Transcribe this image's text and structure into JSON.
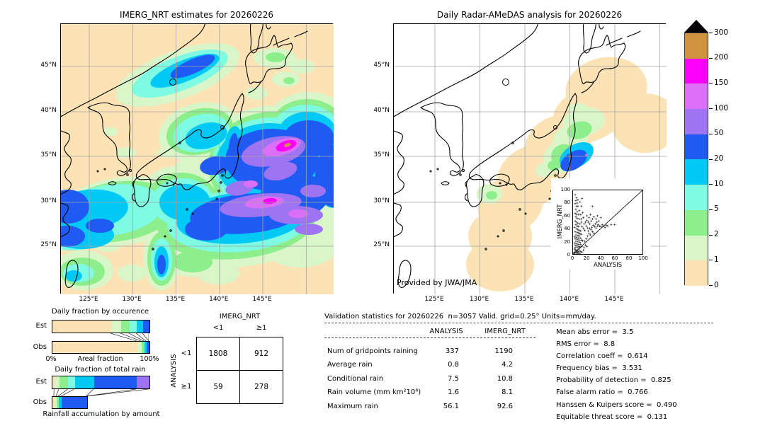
{
  "chart_data": {
    "type": "multi-panel-precipitation-validation",
    "left_map": {
      "type": "map-contour",
      "title": "IMERG_NRT estimates for 20260226",
      "x_ticks": [
        "125°E",
        "130°E",
        "135°E",
        "140°E",
        "145°E"
      ],
      "y_ticks": [
        "45°N",
        "40°N",
        "35°N",
        "30°N",
        "25°N"
      ]
    },
    "right_map": {
      "type": "map-contour",
      "title": "Daily Radar-AMeDAS analysis for 20260226",
      "x_ticks": [
        "125°E",
        "130°E",
        "135°E",
        "140°E",
        "145°E"
      ],
      "y_ticks": [
        "45°N",
        "40°N",
        "35°N",
        "30°N",
        "25°N"
      ],
      "credit": "Provided by JWA/JMA"
    },
    "colorbar": {
      "tick_labels": [
        "300",
        "200",
        "150",
        "100",
        "50",
        "20",
        "10",
        "5",
        "2",
        "1",
        "0"
      ],
      "colors_top_to_bottom": [
        "#cf923e",
        "#fb00fb",
        "#dc6ff7",
        "#9e74f3",
        "#1f5bf2",
        "#00c9f6",
        "#7ffbe3",
        "#8cef8c",
        "#d9f6c9",
        "#fbe3b6"
      ]
    },
    "occurrence": {
      "type": "bar",
      "title": "Daily fraction by occurence",
      "row_labels": [
        "Est",
        "Obs"
      ],
      "x_left_label": "0%",
      "x_axis_label": "Areal fraction",
      "x_right_label": "100%",
      "est_segments": [
        {
          "color": "#fbe3b6",
          "pct": 60.6
        },
        {
          "color": "#d9f6c9",
          "pct": 10.2
        },
        {
          "color": "#8cef8c",
          "pct": 8.8
        },
        {
          "color": "#7ffbe3",
          "pct": 7.3
        },
        {
          "color": "#00c9f6",
          "pct": 6.6
        },
        {
          "color": "#1f5bf2",
          "pct": 6.5
        }
      ],
      "obs_segments": [
        {
          "color": "#fbe3b6",
          "pct": 87.6
        },
        {
          "color": "#d9f6c9",
          "pct": 4.4
        },
        {
          "color": "#8cef8c",
          "pct": 2.9
        },
        {
          "color": "#00c9f6",
          "pct": 2.2
        },
        {
          "color": "#1f5bf2",
          "pct": 2.9
        }
      ]
    },
    "total_rain": {
      "type": "bar",
      "title": "Daily fraction of total rain",
      "footer": "Rainfall accumulation by amount",
      "row_labels": [
        "Est",
        "Obs"
      ],
      "est_segments": [
        {
          "color": "#fbe3b6",
          "pct": 2.3
        },
        {
          "color": "#d9f6c9",
          "pct": 5.0
        },
        {
          "color": "#8cef8c",
          "pct": 9.1
        },
        {
          "color": "#7ffbe3",
          "pct": 6.8
        },
        {
          "color": "#00c9f6",
          "pct": 19.7
        },
        {
          "color": "#1f5bf2",
          "pct": 44.0
        },
        {
          "color": "#9e74f3",
          "pct": 13.1
        }
      ],
      "obs_segments": [
        {
          "color": "#fbe3b6",
          "pct": 2.2
        },
        {
          "color": "#d9f6c9",
          "pct": 2.2
        },
        {
          "color": "#8cef8c",
          "pct": 2.2
        },
        {
          "color": "#00c9f6",
          "pct": 2.9
        },
        {
          "color": "#1f5bf2",
          "pct": 26.0
        }
      ]
    },
    "contingency": {
      "type": "table",
      "col_axis_label": "IMERG_NRT",
      "row_axis_label": "ANALYSIS",
      "col_labels": [
        "<1",
        "≥1"
      ],
      "row_labels": [
        "<1",
        "≥1"
      ],
      "values": [
        [
          "1808",
          "912"
        ],
        [
          "59",
          "278"
        ]
      ]
    },
    "validation": {
      "type": "table",
      "title": "Validation statistics for 20260226  n=3057 Valid. grid=0.25° Units=mm/day.",
      "columns": [
        "ANALYSIS",
        "IMERG_NRT"
      ],
      "rows": [
        [
          "Num of gridpoints raining",
          "337",
          "1190"
        ],
        [
          "Average rain",
          "0.8",
          "4.2"
        ],
        [
          "Conditional rain",
          "7.5",
          "10.8"
        ],
        [
          "Rain volume (mm km²10⁶)",
          "1.6",
          "8.1"
        ],
        [
          "Maximum rain",
          "56.1",
          "92.6"
        ]
      ],
      "stats": [
        [
          "Mean abs error =",
          "3.5"
        ],
        [
          "RMS error =",
          "8.8"
        ],
        [
          "Correlation coeff =",
          "0.614"
        ],
        [
          "Frequency bias =",
          "3.531"
        ],
        [
          "Probability of detection =",
          "0.825"
        ],
        [
          "False alarm ratio =",
          "0.766"
        ],
        [
          "Hanssen & Kuipers score =",
          "0.490"
        ],
        [
          "Equitable threat score =",
          "0.131"
        ]
      ]
    },
    "scatter": {
      "type": "scatter",
      "xlabel": "ANALYSIS",
      "ylabel": "IMERG_NRT",
      "xlim": [
        0,
        100
      ],
      "ylim": [
        0,
        100
      ],
      "x_ticks": [
        "0",
        "20",
        "40",
        "60",
        "80",
        "100"
      ],
      "y_ticks": [
        "0",
        "20",
        "40",
        "60",
        "80",
        "100"
      ],
      "identity_line": true,
      "points": [
        [
          1,
          1
        ],
        [
          2,
          3
        ],
        [
          3,
          2
        ],
        [
          5,
          3
        ],
        [
          6,
          1
        ],
        [
          8,
          2
        ],
        [
          10,
          1
        ],
        [
          2,
          9
        ],
        [
          4,
          5
        ],
        [
          7,
          4
        ],
        [
          11,
          4
        ],
        [
          3,
          7
        ],
        [
          6,
          6
        ],
        [
          9,
          6
        ],
        [
          4,
          11
        ],
        [
          7,
          10
        ],
        [
          10,
          10
        ],
        [
          13,
          3
        ],
        [
          15,
          6
        ],
        [
          2,
          17
        ],
        [
          5,
          16
        ],
        [
          8,
          15
        ],
        [
          11,
          15
        ],
        [
          3,
          14
        ],
        [
          6,
          13
        ],
        [
          9,
          12
        ],
        [
          13,
          12
        ],
        [
          16,
          10
        ],
        [
          4,
          20
        ],
        [
          7,
          19
        ],
        [
          10,
          18
        ],
        [
          18,
          14
        ],
        [
          20,
          12
        ],
        [
          3,
          24
        ],
        [
          6,
          23
        ],
        [
          9,
          22
        ],
        [
          12,
          22
        ],
        [
          14,
          21
        ],
        [
          2,
          27
        ],
        [
          5,
          26
        ],
        [
          8,
          25
        ],
        [
          11,
          25
        ],
        [
          17,
          20
        ],
        [
          4,
          30
        ],
        [
          7,
          29
        ],
        [
          9,
          28
        ],
        [
          19,
          24
        ],
        [
          12,
          31
        ],
        [
          3,
          35
        ],
        [
          6,
          34
        ],
        [
          8,
          33
        ],
        [
          10,
          32
        ],
        [
          21,
          28
        ],
        [
          5,
          40
        ],
        [
          7,
          38
        ],
        [
          9,
          37
        ],
        [
          11,
          36
        ],
        [
          23,
          32
        ],
        [
          25,
          30
        ],
        [
          2,
          42
        ],
        [
          6,
          44
        ],
        [
          8,
          43
        ],
        [
          13,
          43
        ],
        [
          15,
          40
        ],
        [
          17,
          37
        ],
        [
          22,
          36
        ],
        [
          24,
          40
        ],
        [
          26,
          38
        ],
        [
          28,
          35
        ],
        [
          30,
          33
        ],
        [
          4,
          46
        ],
        [
          10,
          47
        ],
        [
          19,
          44
        ],
        [
          21,
          41
        ],
        [
          27,
          42
        ],
        [
          31,
          43
        ],
        [
          33,
          41
        ],
        [
          3,
          52
        ],
        [
          5,
          50
        ],
        [
          7,
          48
        ],
        [
          16,
          47
        ],
        [
          29,
          45
        ],
        [
          35,
          44
        ],
        [
          38,
          44
        ],
        [
          40,
          43
        ],
        [
          4,
          58
        ],
        [
          6,
          56
        ],
        [
          9,
          55
        ],
        [
          12,
          55
        ],
        [
          18,
          50
        ],
        [
          20,
          53
        ],
        [
          22,
          50
        ],
        [
          24,
          47
        ],
        [
          32,
          47
        ],
        [
          34,
          50
        ],
        [
          36,
          46
        ],
        [
          42,
          46
        ],
        [
          44,
          44
        ],
        [
          46,
          42
        ],
        [
          48,
          45
        ],
        [
          50,
          44
        ],
        [
          55,
          46
        ],
        [
          60,
          46
        ],
        [
          3,
          64
        ],
        [
          5,
          62
        ],
        [
          8,
          62
        ],
        [
          11,
          62
        ],
        [
          14,
          65
        ],
        [
          26,
          52
        ],
        [
          33,
          55
        ],
        [
          37,
          52
        ],
        [
          4,
          70
        ],
        [
          6,
          66
        ],
        [
          9,
          68
        ],
        [
          23,
          57
        ],
        [
          28,
          55
        ],
        [
          30,
          58
        ],
        [
          25,
          62
        ],
        [
          20,
          60
        ],
        [
          15,
          57
        ],
        [
          3,
          79
        ],
        [
          5,
          75
        ],
        [
          7,
          75
        ],
        [
          12,
          75
        ],
        [
          28,
          75
        ],
        [
          35,
          60
        ],
        [
          40,
          57
        ],
        [
          6,
          80
        ],
        [
          4,
          84
        ],
        [
          7,
          85
        ],
        [
          10,
          82
        ],
        [
          5,
          88
        ],
        [
          13,
          87
        ],
        [
          3,
          93
        ],
        [
          12,
          50
        ]
      ]
    }
  }
}
